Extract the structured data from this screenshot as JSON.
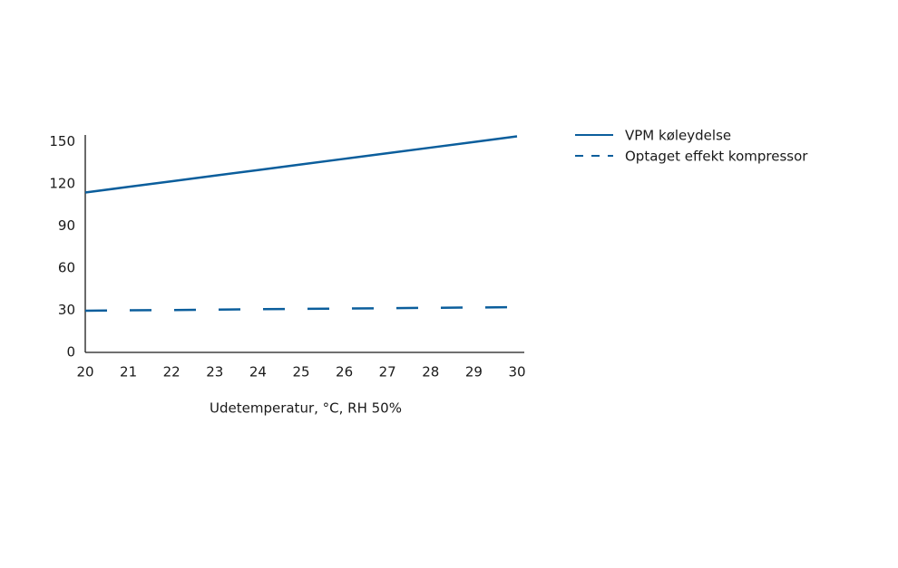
{
  "chart_data": {
    "type": "line",
    "x": [
      20,
      21,
      22,
      23,
      24,
      25,
      26,
      27,
      28,
      29,
      30
    ],
    "x_label": "Udetemperatur, °C, RH 50%",
    "series": [
      {
        "name": "VPM køleydelse",
        "color": "#0b5e9c",
        "dash": "solid",
        "values": [
          114,
          118,
          122,
          126,
          130,
          134,
          138,
          142,
          146,
          150,
          154
        ]
      },
      {
        "name": "Optaget effekt kompressor",
        "color": "#0b5e9c",
        "dash": "dashed",
        "values": [
          29.7,
          30,
          30.2,
          30.5,
          30.8,
          31,
          31.3,
          31.5,
          31.8,
          32,
          32.3
        ]
      }
    ],
    "xlim": [
      20,
      30
    ],
    "xticks": [
      20,
      21,
      22,
      23,
      24,
      25,
      26,
      27,
      28,
      29,
      30
    ],
    "ylim": [
      0,
      155
    ],
    "yticks": [
      0,
      30,
      60,
      90,
      120,
      150
    ],
    "grid": false,
    "legend": "right"
  }
}
